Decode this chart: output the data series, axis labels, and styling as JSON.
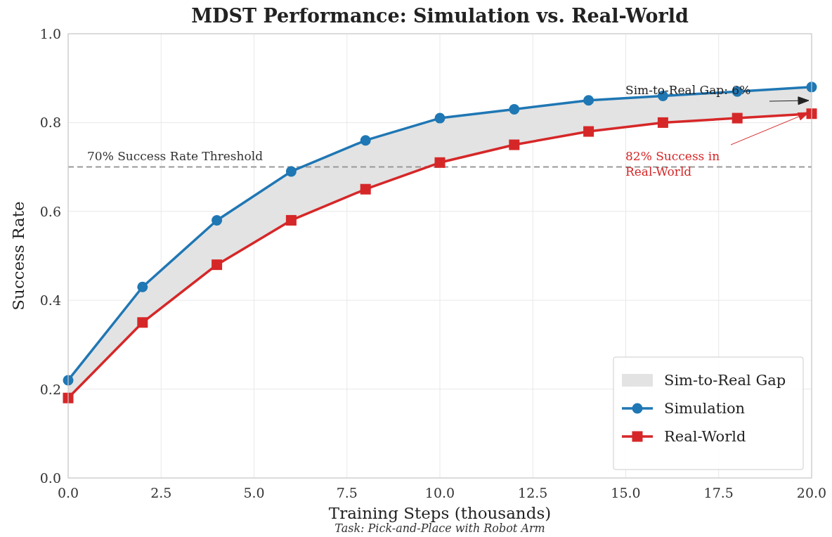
{
  "chart_data": {
    "type": "line",
    "title": "MDST Performance: Simulation vs. Real-World",
    "xlabel": "Training Steps (thousands)",
    "ylabel": "Success Rate",
    "x": [
      0,
      2,
      4,
      6,
      8,
      10,
      12,
      14,
      16,
      18,
      20
    ],
    "series": [
      {
        "name": "Simulation",
        "color": "#1f77b4",
        "marker": "circle",
        "values": [
          0.22,
          0.43,
          0.58,
          0.69,
          0.76,
          0.81,
          0.83,
          0.85,
          0.86,
          0.87,
          0.88
        ],
        "upper": [
          0.22,
          0.43,
          0.58,
          0.69,
          0.76,
          0.81,
          0.83,
          0.85,
          0.86,
          0.87,
          0.88
        ],
        "lower": [
          0.18,
          0.35,
          0.48,
          0.58,
          0.65,
          0.71,
          0.75,
          0.78,
          0.8,
          0.81,
          0.82
        ]
      },
      {
        "name": "Real-World",
        "color": "#d62728",
        "marker": "square",
        "values": [
          0.18,
          0.35,
          0.48,
          0.58,
          0.65,
          0.71,
          0.75,
          0.78,
          0.8,
          0.81,
          0.82
        ]
      }
    ],
    "xlim": [
      0,
      20
    ],
    "xticks": [
      {
        "value": 0,
        "label": "0.0"
      },
      {
        "value": 2.5,
        "label": "2.5"
      },
      {
        "value": 5,
        "label": "5.0"
      },
      {
        "value": 7.5,
        "label": "7.5"
      },
      {
        "value": 10,
        "label": "10.0"
      },
      {
        "value": 12.5,
        "label": "12.5"
      },
      {
        "value": 15,
        "label": "15.0"
      },
      {
        "value": 17.5,
        "label": "17.5"
      },
      {
        "value": 20,
        "label": "20.0"
      }
    ],
    "ylim": [
      0,
      1
    ],
    "yticks": [
      {
        "value": 0,
        "label": "0.0"
      },
      {
        "value": 0.2,
        "label": "0.2"
      },
      {
        "value": 0.4,
        "label": "0.4"
      },
      {
        "value": 0.6,
        "label": "0.6"
      },
      {
        "value": 0.8,
        "label": "0.8"
      },
      {
        "value": 1,
        "label": "1.0"
      }
    ],
    "ref_lines": [
      {
        "axis": "y",
        "value": 0.7,
        "label": "70% Success Rate Threshold",
        "color": "#999999",
        "line_style": "dashed"
      }
    ],
    "annotations": [
      "Sim-to-Real Gap",
      "Sim-to-Real Gap: 6%",
      "82% Success in Real-World",
      "Task: Pick-and-Place with Robot Arm"
    ],
    "grid": true,
    "legend": "bottom right",
    "line_style": "solid"
  }
}
